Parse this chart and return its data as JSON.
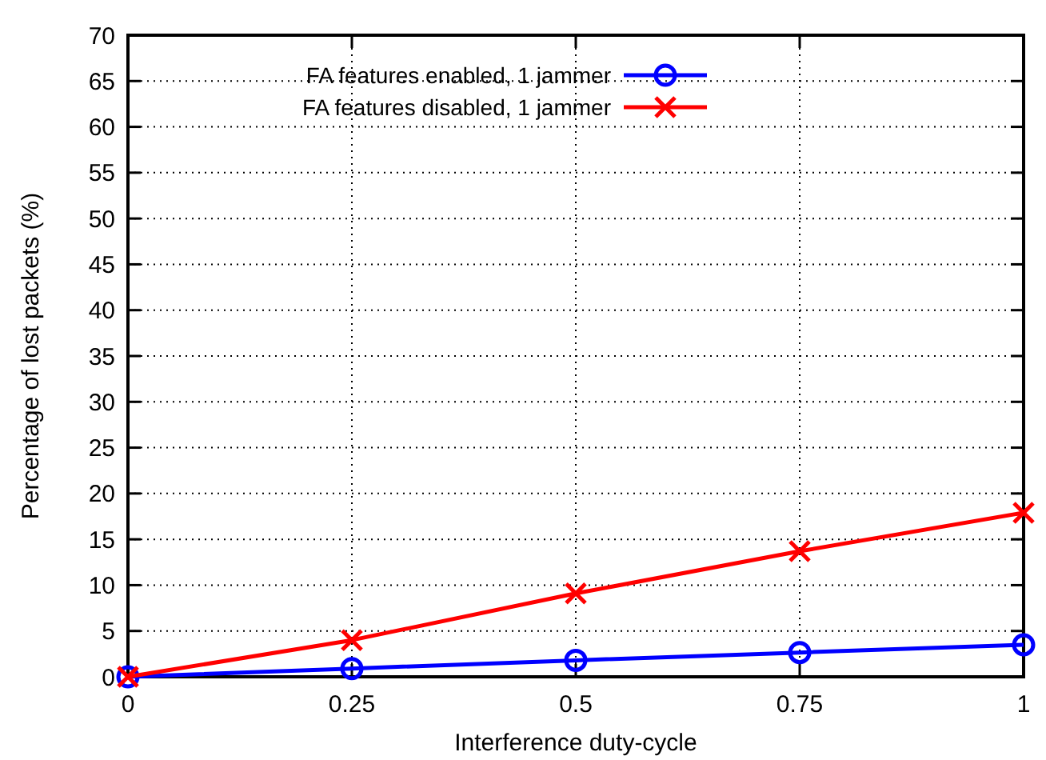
{
  "chart_data": {
    "type": "line",
    "xlabel": "Interference duty-cycle",
    "ylabel": "Percentage of lost packets (%)",
    "x": [
      0,
      0.25,
      0.5,
      0.75,
      1
    ],
    "xlim": [
      0,
      1
    ],
    "xticks": [
      0,
      0.25,
      0.5,
      0.75,
      1
    ],
    "ylim": [
      0,
      70
    ],
    "yticks": [
      0,
      5,
      10,
      15,
      20,
      25,
      30,
      35,
      40,
      45,
      50,
      55,
      60,
      65,
      70
    ],
    "grid": true,
    "legend": "top left",
    "line_style": "solid",
    "series": [
      {
        "name": "FA features enabled, 1 jammer",
        "color": "#0000ff",
        "marker": "circle",
        "values": [
          0,
          0.9,
          1.8,
          2.65,
          3.5
        ]
      },
      {
        "name": "FA features disabled, 1 jammer",
        "color": "#ff0000",
        "marker": "cross",
        "values": [
          0,
          4.0,
          9.1,
          13.7,
          17.9
        ]
      }
    ]
  }
}
